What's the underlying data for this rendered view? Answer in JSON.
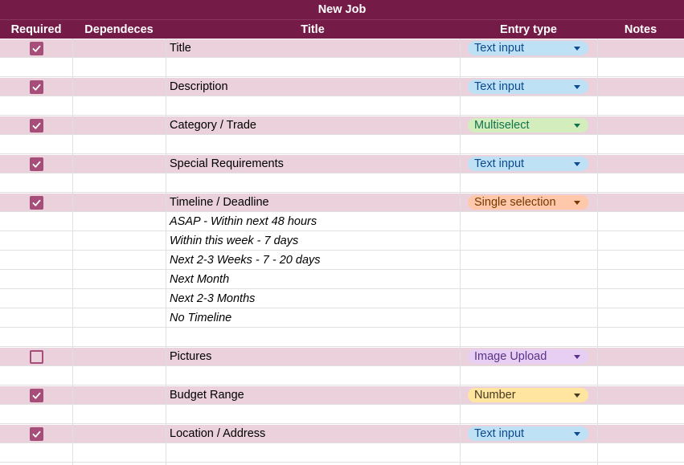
{
  "sheet": {
    "banner_title": "New Job"
  },
  "columns": {
    "required": "Required",
    "dependences": "Dependeces",
    "title": "Title",
    "entry_type": "Entry type",
    "notes": "Notes"
  },
  "rows": [
    {
      "kind": "field",
      "checked": true,
      "title": "Title",
      "entry": "Text input",
      "chip": "blue"
    },
    {
      "kind": "blank"
    },
    {
      "kind": "field",
      "checked": true,
      "title": "Description",
      "entry": "Text input",
      "chip": "blue"
    },
    {
      "kind": "blank"
    },
    {
      "kind": "field",
      "checked": true,
      "title": "Category / Trade",
      "entry": "Multiselect",
      "chip": "green"
    },
    {
      "kind": "blank"
    },
    {
      "kind": "field",
      "checked": true,
      "title": "Special Requirements",
      "entry": "Text input",
      "chip": "blue"
    },
    {
      "kind": "blank"
    },
    {
      "kind": "field",
      "checked": true,
      "title": "Timeline / Deadline",
      "entry": "Single selection",
      "chip": "orange"
    },
    {
      "kind": "option",
      "title": "ASAP - Within next 48 hours"
    },
    {
      "kind": "option",
      "title": "Within this week - 7 days"
    },
    {
      "kind": "option",
      "title": "Next 2-3 Weeks - 7 - 20 days"
    },
    {
      "kind": "option",
      "title": "Next Month"
    },
    {
      "kind": "option",
      "title": "Next 2-3 Months"
    },
    {
      "kind": "option",
      "title": "No Timeline"
    },
    {
      "kind": "blank"
    },
    {
      "kind": "field",
      "checked": false,
      "title": "Pictures",
      "entry": "Image Upload",
      "chip": "purple"
    },
    {
      "kind": "blank"
    },
    {
      "kind": "field",
      "checked": true,
      "title": "Budget Range",
      "entry": "Number",
      "chip": "yellow"
    },
    {
      "kind": "blank"
    },
    {
      "kind": "field",
      "checked": true,
      "title": "Location / Address",
      "entry": "Text input",
      "chip": "blue"
    },
    {
      "kind": "blank"
    }
  ],
  "chip_colors": {
    "blue": {
      "bg": "#bfe1f6",
      "fg": "#0b4a8b"
    },
    "green": {
      "bg": "#d4edbc",
      "fg": "#11734b"
    },
    "orange": {
      "bg": "#ffc8aa",
      "fg": "#753800"
    },
    "purple": {
      "bg": "#e6cff2",
      "fg": "#5a3286"
    },
    "yellow": {
      "bg": "#ffe5a0",
      "fg": "#473822"
    }
  },
  "icons": {
    "checkbox": "checkmark-icon",
    "dropdown": "dropdown-arrow-icon"
  }
}
